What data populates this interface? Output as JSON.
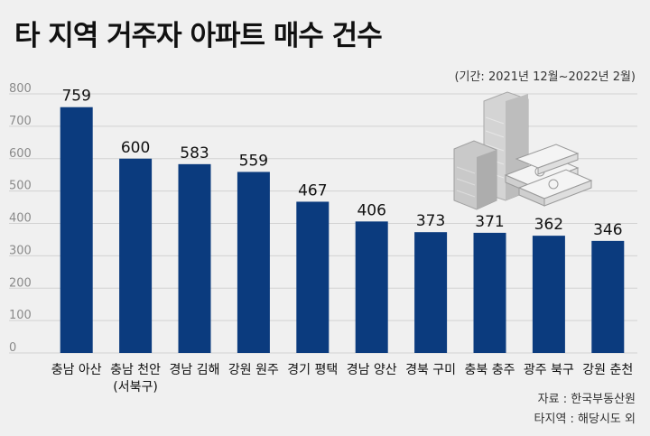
{
  "title": "타 지역 거주자 아파트 매수 건수",
  "period_note": "(기간: 2021년 12월~2022년 2월)",
  "source": "자료 : 한국부동산원",
  "note": "타지역 : 해당시도 외",
  "colors": {
    "bar": "#0b3b7e",
    "background": "#f0f0f0",
    "grid": "#d2d2d2"
  },
  "chart_data": {
    "type": "bar",
    "title": "타 지역 거주자 아파트 매수 건수",
    "xlabel": "",
    "ylabel": "",
    "ylim": [
      0,
      800
    ],
    "yticks": [
      0,
      100,
      200,
      300,
      400,
      500,
      600,
      700,
      800
    ],
    "grid": true,
    "categories": [
      [
        "충남 아산"
      ],
      [
        "충남 천안",
        "(서북구)"
      ],
      [
        "경남 김해"
      ],
      [
        "강원 원주"
      ],
      [
        "경기 평택"
      ],
      [
        "경남 양산"
      ],
      [
        "경북 구미"
      ],
      [
        "충북 충주"
      ],
      [
        "광주 북구"
      ],
      [
        "강원 춘천"
      ]
    ],
    "values": [
      759,
      600,
      583,
      559,
      467,
      406,
      373,
      371,
      362,
      346
    ]
  }
}
